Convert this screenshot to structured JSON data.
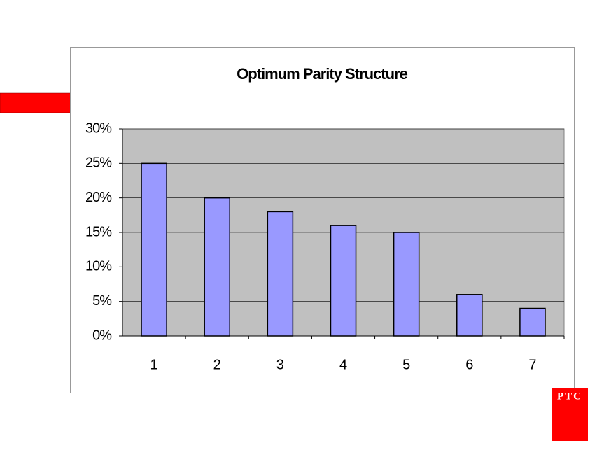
{
  "chart_data": {
    "type": "bar",
    "title": "Optimum Parity Structure",
    "categories": [
      "1",
      "2",
      "3",
      "4",
      "5",
      "6",
      "7"
    ],
    "values": [
      25,
      20,
      18,
      16,
      15,
      6,
      4
    ],
    "color": "#9999ff",
    "ylim": [
      0,
      30
    ],
    "yticks": [
      {
        "value": 0,
        "label": "0%"
      },
      {
        "value": 5,
        "label": "5%"
      },
      {
        "value": 10,
        "label": "10%"
      },
      {
        "value": 15,
        "label": "15%"
      },
      {
        "value": 20,
        "label": "20%"
      },
      {
        "value": 25,
        "label": "25%"
      },
      {
        "value": 30,
        "label": "30%"
      }
    ],
    "grid": true
  },
  "logo": {
    "text": "PTC"
  }
}
